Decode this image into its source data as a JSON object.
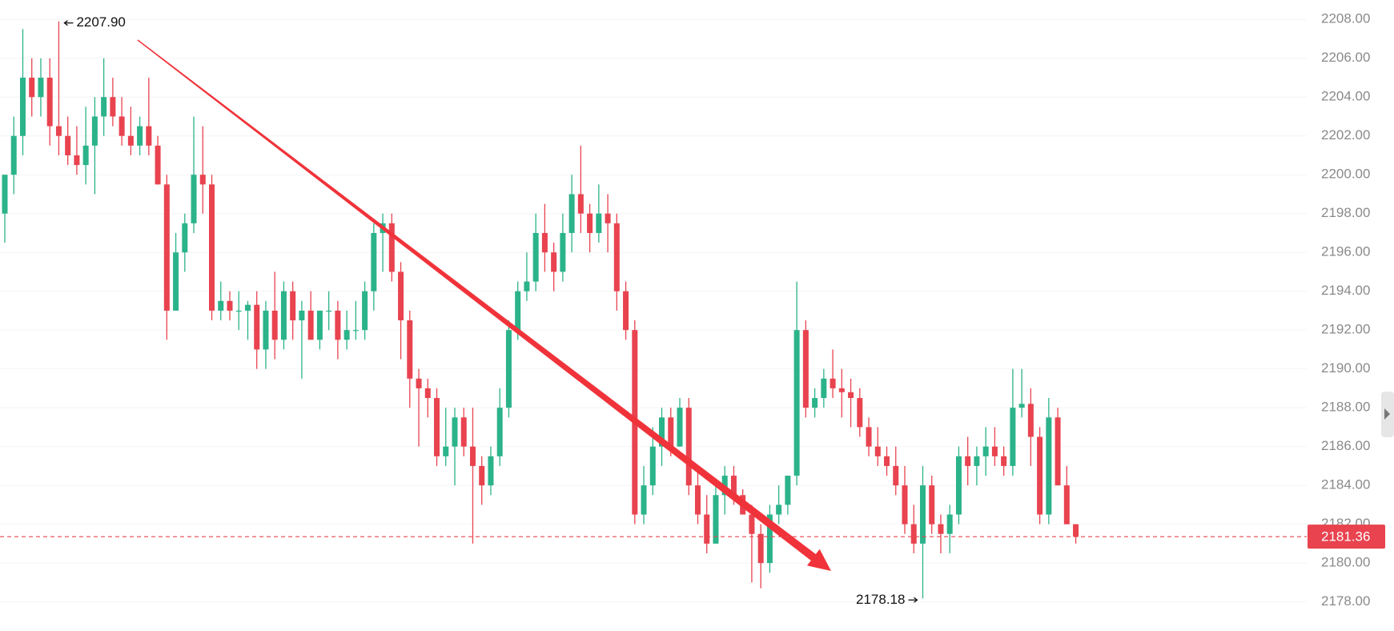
{
  "chart_data": {
    "type": "candlestick",
    "open": [
      2198,
      2200,
      2202,
      2205,
      2204,
      2205,
      2202.5,
      2202,
      2201,
      2200.5,
      2201.5,
      2203,
      2204,
      2203,
      2202,
      2201.5,
      2202.5,
      2201.5,
      2199.5,
      2193,
      2196,
      2197.5,
      2200,
      2199.5,
      2193,
      2193.5,
      2193,
      2193,
      2193.3,
      2191,
      2193,
      2191.5,
      2194,
      2192.5,
      2193,
      2191.5,
      2193,
      2193,
      2191.5,
      2192,
      2192,
      2194,
      2197,
      2197.5,
      2195,
      2192.5,
      2189.5,
      2189,
      2188.5,
      2185.5,
      2186,
      2187.5,
      2186,
      2185,
      2184,
      2185.5,
      2188,
      2192,
      2194,
      2194.5,
      2197,
      2196,
      2195,
      2197,
      2199,
      2198,
      2197,
      2198,
      2197.5,
      2194,
      2192,
      2182.5,
      2184,
      2186,
      2187.5,
      2186,
      2188,
      2184,
      2182.5,
      2181,
      2183.5,
      2184.5,
      2183.5,
      2182.5,
      2181.5,
      2180,
      2182.5,
      2183,
      2184.5,
      2192,
      2188,
      2188.5,
      2189.5,
      2189,
      2188.8,
      2188.5,
      2187,
      2186,
      2185.5,
      2185,
      2184,
      2182,
      2181,
      2184,
      2182,
      2181.5,
      2182.5,
      2185.5,
      2185,
      2185.5,
      2186,
      2185.5,
      2185,
      2188,
      2188.2,
      2186.5,
      2182.5,
      2187.5,
      2184,
      2182
    ],
    "high": [
      2200,
      2203,
      2207.5,
      2206,
      2206,
      2206,
      2207.9,
      2203,
      2202.5,
      2203.5,
      2204,
      2206,
      2205,
      2204,
      2203.5,
      2203,
      2205,
      2202,
      2200,
      2197,
      2198,
      2203,
      2202.5,
      2200,
      2194.5,
      2194,
      2194,
      2193.5,
      2194,
      2193.5,
      2195,
      2194.5,
      2194.5,
      2193.5,
      2194,
      2193,
      2194,
      2193.5,
      2193,
      2193.5,
      2194.5,
      2197.5,
      2198,
      2198,
      2195.5,
      2193,
      2190,
      2189.5,
      2189,
      2188,
      2188,
      2188,
      2188,
      2185.5,
      2186,
      2189,
      2192.5,
      2194.5,
      2196,
      2198,
      2198.5,
      2196.5,
      2198,
      2200,
      2201.5,
      2198.5,
      2199.5,
      2199,
      2198,
      2194.5,
      2192.5,
      2185,
      2187,
      2188,
      2188,
      2188.5,
      2188.5,
      2185,
      2183.5,
      2184,
      2185,
      2185,
      2183.8,
      2183,
      2182,
      2183,
      2184,
      2184.5,
      2194.5,
      2192.5,
      2189,
      2190,
      2191,
      2190,
      2189.5,
      2189,
      2187.5,
      2187,
      2186,
      2186,
      2185,
      2183,
      2185,
      2184.5,
      2182.5,
      2183,
      2186,
      2186.5,
      2186,
      2187,
      2187,
      2186,
      2190,
      2190,
      2189,
      2187,
      2188.5,
      2188,
      2185,
      2182
    ],
    "low": [
      2196.5,
      2199,
      2201,
      2203,
      2203,
      2201.5,
      2201,
      2200.5,
      2200,
      2199.5,
      2199,
      2202,
      2202.5,
      2201.5,
      2201,
      2201,
      2201,
      2199.5,
      2191.5,
      2193,
      2195,
      2197,
      2198,
      2192.5,
      2192.5,
      2192.5,
      2192,
      2191.5,
      2190,
      2190,
      2190.5,
      2191,
      2191.5,
      2189.5,
      2191.5,
      2191,
      2192,
      2190.5,
      2191,
      2191.5,
      2191.5,
      2193,
      2195,
      2194.5,
      2190.5,
      2188,
      2186,
      2187.5,
      2185,
      2185,
      2184,
      2185.5,
      2181,
      2183,
      2183.5,
      2185,
      2187.5,
      2191.5,
      2193.5,
      2194,
      2195,
      2194,
      2194.5,
      2196,
      2197,
      2196,
      2196.5,
      2196,
      2193,
      2191.5,
      2182,
      2182,
      2183.5,
      2185,
      2185.5,
      2186,
      2183.5,
      2182,
      2180.5,
      2181,
      2182.5,
      2183,
      2182.5,
      2179,
      2178.7,
      2179.5,
      2182,
      2182.5,
      2184,
      2187.5,
      2187.5,
      2188,
      2188.5,
      2187.5,
      2187,
      2186.5,
      2185.5,
      2185,
      2184.5,
      2183.5,
      2181.5,
      2180.5,
      2178.18,
      2181.5,
      2180.5,
      2180.5,
      2182,
      2184,
      2184,
      2184.5,
      2185,
      2184.5,
      2184.5,
      2187.5,
      2185,
      2182,
      2182,
      2184,
      2182,
      2181
    ],
    "close": [
      2200,
      2202,
      2205,
      2204,
      2205,
      2202.5,
      2202,
      2201,
      2200.5,
      2201.5,
      2203,
      2204,
      2203,
      2202,
      2201.5,
      2202.5,
      2201.5,
      2199.5,
      2193,
      2196,
      2197.5,
      2200,
      2199.5,
      2193,
      2193.5,
      2193,
      2193,
      2193.3,
      2191,
      2193,
      2191.5,
      2194,
      2192.5,
      2193,
      2191.5,
      2193,
      2193,
      2191.5,
      2192,
      2192,
      2194,
      2197,
      2197.5,
      2195,
      2192.5,
      2189.5,
      2189,
      2188.5,
      2185.5,
      2186,
      2187.5,
      2186,
      2185,
      2184,
      2185.5,
      2188,
      2192,
      2194,
      2194.5,
      2197,
      2196,
      2195,
      2197,
      2199,
      2198,
      2197,
      2198,
      2197.5,
      2194,
      2192,
      2182.5,
      2184,
      2186,
      2187.5,
      2186,
      2188,
      2184,
      2182.5,
      2181,
      2183.5,
      2184.5,
      2183.5,
      2182.5,
      2181.5,
      2180,
      2182.5,
      2183,
      2184.5,
      2192,
      2188,
      2188.5,
      2189.5,
      2189,
      2188.8,
      2188.5,
      2187,
      2186,
      2185.5,
      2185,
      2184,
      2182,
      2181,
      2184,
      2182,
      2181.5,
      2182.5,
      2185.5,
      2185,
      2185.5,
      2186,
      2185.5,
      2185,
      2188,
      2188.2,
      2186.5,
      2182.5,
      2187.5,
      2184,
      2182,
      2181.36
    ],
    "up_color": "#2bb38a",
    "down_color": "#e8434f",
    "ylim": [
      2176.5,
      2209
    ],
    "yticks": [
      {
        "value": 2178,
        "label": "2178.00"
      },
      {
        "value": 2180,
        "label": "2180.00"
      },
      {
        "value": 2182,
        "label": "2182.00"
      },
      {
        "value": 2184,
        "label": "2184.00"
      },
      {
        "value": 2186,
        "label": "2186.00"
      },
      {
        "value": 2188,
        "label": "2188.00"
      },
      {
        "value": 2190,
        "label": "2190.00"
      },
      {
        "value": 2192,
        "label": "2192.00"
      },
      {
        "value": 2194,
        "label": "2194.00"
      },
      {
        "value": 2196,
        "label": "2196.00"
      },
      {
        "value": 2198,
        "label": "2198.00"
      },
      {
        "value": 2200,
        "label": "2200.00"
      },
      {
        "value": 2202,
        "label": "2202.00"
      },
      {
        "value": 2204,
        "label": "2204.00"
      },
      {
        "value": 2206,
        "label": "2206.00"
      },
      {
        "value": 2208,
        "label": "2208.00"
      }
    ],
    "grid": true,
    "last_price": 2181.36,
    "high_marker": {
      "value": 2207.9,
      "label": "2207.90"
    },
    "low_marker": 2178.18
  }
}
